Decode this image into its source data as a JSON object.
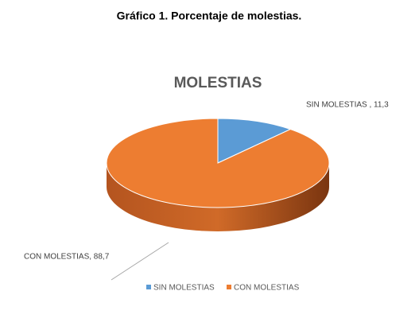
{
  "caption": "Gráfico 1. Porcentaje de molestias.",
  "chart_data": {
    "type": "pie3d",
    "title": "MOLESTIAS",
    "categories": [
      "SIN MOLESTIAS",
      "CON MOLESTIAS"
    ],
    "values": [
      11.3,
      88.7
    ],
    "value_labels": [
      "SIN MOLESTIAS , 11,3",
      "CON MOLESTIAS, 88,7"
    ],
    "colors": [
      "#5b9bd5",
      "#ed7d31"
    ],
    "legend": "bottom"
  }
}
